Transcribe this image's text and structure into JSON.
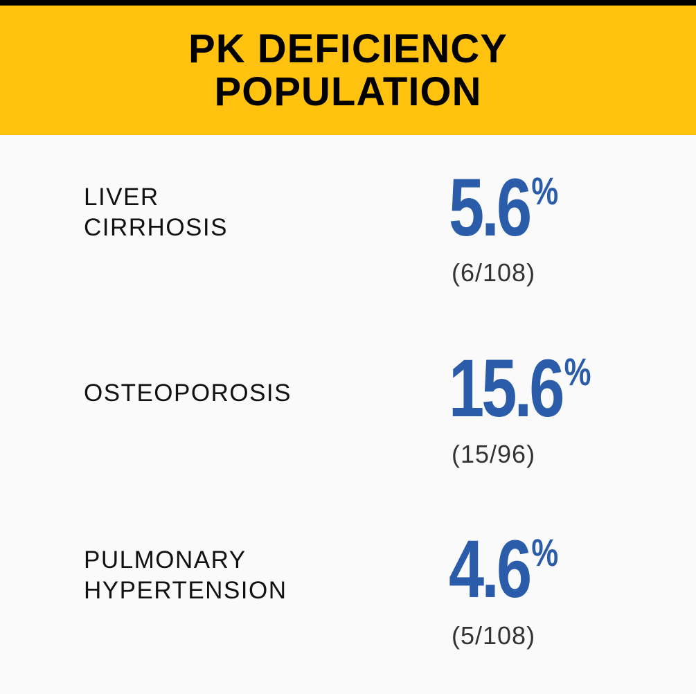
{
  "header": {
    "title": "PK DEFICIENCY\nPOPULATION"
  },
  "colors": {
    "header_background": "#ffc20e",
    "top_bar": "#000000",
    "stat_blue": "#2a5caa",
    "page_background": "#fafafa"
  },
  "rows": [
    {
      "label": "LIVER\nCIRRHOSIS",
      "value": "5.6",
      "unit": "%",
      "ratio": "(6/108)"
    },
    {
      "label": "OSTEOPOROSIS",
      "value": "15.6",
      "unit": "%",
      "ratio": "(15/96)"
    },
    {
      "label": "PULMONARY\nHYPERTENSION",
      "value": "4.6",
      "unit": "%",
      "ratio": "(5/108)"
    }
  ]
}
